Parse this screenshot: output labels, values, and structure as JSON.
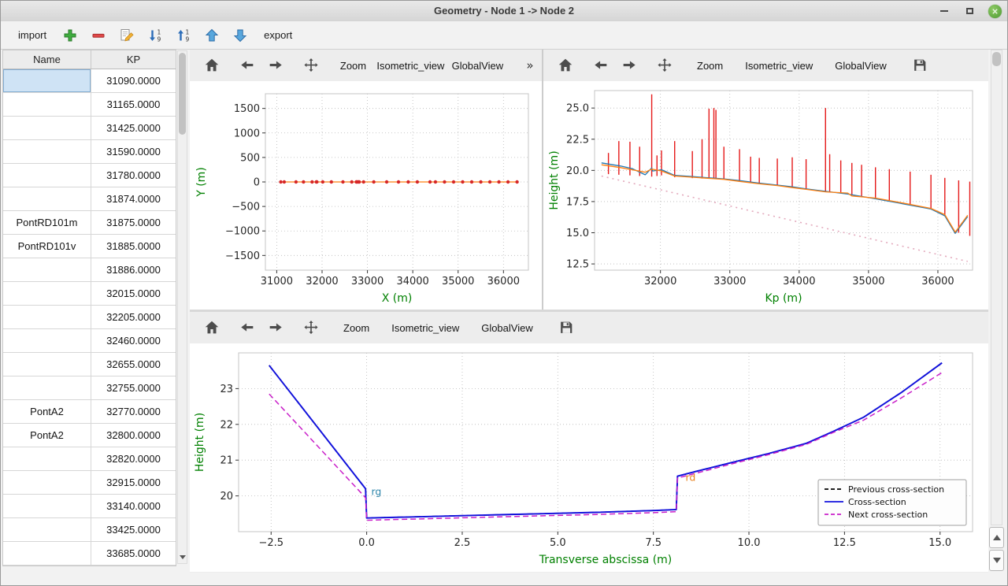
{
  "window": {
    "title": "Geometry - Node 1 -> Node 2"
  },
  "app_toolbar": {
    "import_label": "import",
    "export_label": "export",
    "icons": [
      "add-icon",
      "remove-icon",
      "edit-icon",
      "sort-descending-icon",
      "sort-ascending-icon",
      "move-up-icon",
      "move-down-icon"
    ]
  },
  "table": {
    "columns": [
      "Name",
      "KP"
    ],
    "rows": [
      {
        "name": "",
        "kp": "31090.0000",
        "selected": true
      },
      {
        "name": "",
        "kp": "31165.0000"
      },
      {
        "name": "",
        "kp": "31425.0000"
      },
      {
        "name": "",
        "kp": "31590.0000"
      },
      {
        "name": "",
        "kp": "31780.0000"
      },
      {
        "name": "",
        "kp": "31874.0000"
      },
      {
        "name": "PontRD101m",
        "kp": "31875.0000"
      },
      {
        "name": "PontRD101v",
        "kp": "31885.0000"
      },
      {
        "name": "",
        "kp": "31886.0000"
      },
      {
        "name": "",
        "kp": "32015.0000"
      },
      {
        "name": "",
        "kp": "32205.0000"
      },
      {
        "name": "",
        "kp": "32460.0000"
      },
      {
        "name": "",
        "kp": "32655.0000"
      },
      {
        "name": "",
        "kp": "32755.0000"
      },
      {
        "name": "PontA2",
        "kp": "32770.0000"
      },
      {
        "name": "PontA2",
        "kp": "32800.0000"
      },
      {
        "name": "",
        "kp": "32820.0000"
      },
      {
        "name": "",
        "kp": "32915.0000"
      },
      {
        "name": "",
        "kp": "33140.0000"
      },
      {
        "name": "",
        "kp": "33425.0000"
      },
      {
        "name": "",
        "kp": "33685.0000"
      }
    ]
  },
  "plot_toolbar_labels": {
    "zoom": "Zoom",
    "isometric": "Isometric_view",
    "globalview": "GlobalView",
    "overflow": "»"
  },
  "panels": [
    {
      "name": "plan-view",
      "buttons": [
        "home",
        "back",
        "forward",
        "move",
        "zoom",
        "isometric",
        "globalview",
        "overflow"
      ]
    },
    {
      "name": "long-profile",
      "buttons": [
        "home",
        "back",
        "forward",
        "move",
        "zoom",
        "isometric",
        "globalview",
        "save"
      ]
    },
    {
      "name": "cross-section",
      "buttons": [
        "home",
        "back",
        "forward",
        "move",
        "zoom",
        "isometric",
        "globalview",
        "save"
      ]
    }
  ],
  "chart_data": [
    {
      "type": "line",
      "title": "",
      "xlabel": "X (m)",
      "ylabel": "Y (m)",
      "axis_color": "#008000",
      "xlim": [
        30750,
        36550
      ],
      "ylim": [
        -1800,
        1800
      ],
      "xticks": [
        31000,
        32000,
        33000,
        34000,
        35000,
        36000
      ],
      "yticks": [
        -1500,
        -1000,
        -500,
        0,
        500,
        1000,
        1500
      ],
      "xtick_labels": [
        "31000",
        "32000",
        "33000",
        "34000",
        "35000",
        "36000"
      ],
      "ytick_labels": [
        "−1500",
        "−1000",
        "−500",
        "0",
        "500",
        "1000",
        "1500"
      ],
      "series": [
        {
          "name": "river-axis",
          "kind": "line",
          "color": "#ff7f0e",
          "width": 1.2,
          "marker": {
            "color": "#d62728",
            "r": 2.2
          },
          "points": [
            [
              31090,
              0
            ],
            [
              31165,
              0
            ],
            [
              31425,
              0
            ],
            [
              31590,
              0
            ],
            [
              31780,
              0
            ],
            [
              31874,
              0
            ],
            [
              31885,
              0
            ],
            [
              32015,
              0
            ],
            [
              32205,
              0
            ],
            [
              32460,
              0
            ],
            [
              32655,
              0
            ],
            [
              32755,
              0
            ],
            [
              32770,
              0
            ],
            [
              32800,
              0
            ],
            [
              32820,
              0
            ],
            [
              32915,
              0
            ],
            [
              33140,
              0
            ],
            [
              33425,
              0
            ],
            [
              33685,
              0
            ],
            [
              33900,
              0
            ],
            [
              34100,
              0
            ],
            [
              34380,
              0
            ],
            [
              34500,
              0
            ],
            [
              34700,
              0
            ],
            [
              34900,
              0
            ],
            [
              35100,
              0
            ],
            [
              35300,
              0
            ],
            [
              35500,
              0
            ],
            [
              35700,
              0
            ],
            [
              35900,
              0
            ],
            [
              36100,
              0
            ],
            [
              36300,
              0
            ]
          ]
        }
      ]
    },
    {
      "type": "line",
      "title": "",
      "xlabel": "Kp (m)",
      "ylabel": "Height (m)",
      "axis_color": "#008000",
      "xlim": [
        31050,
        36500
      ],
      "ylim": [
        12.0,
        26.4
      ],
      "xticks": [
        32000,
        33000,
        34000,
        35000,
        36000
      ],
      "yticks": [
        12.5,
        15.0,
        17.5,
        20.0,
        22.5,
        25.0
      ],
      "xtick_labels": [
        "32000",
        "33000",
        "34000",
        "35000",
        "36000"
      ],
      "ytick_labels": [
        "12.5",
        "15.0",
        "17.5",
        "20.0",
        "22.5",
        "25.0"
      ],
      "series": [
        {
          "name": "cross-section-extents",
          "kind": "stems",
          "color": "#e51919",
          "width": 1.4,
          "stems": [
            [
              31250,
              19.7,
              21.4
            ],
            [
              31400,
              19.65,
              22.35
            ],
            [
              31560,
              19.6,
              22.3
            ],
            [
              31700,
              19.55,
              21.9
            ],
            [
              31874,
              19.5,
              26.1
            ],
            [
              31950,
              19.55,
              21.2
            ],
            [
              32015,
              19.6,
              21.6
            ],
            [
              32205,
              19.45,
              22.35
            ],
            [
              32460,
              19.38,
              21.55
            ],
            [
              32600,
              19.35,
              22.5
            ],
            [
              32700,
              19.33,
              24.95
            ],
            [
              32770,
              19.3,
              25.0
            ],
            [
              32800,
              19.3,
              24.85
            ],
            [
              32915,
              19.28,
              21.9
            ],
            [
              33140,
              19.12,
              21.7
            ],
            [
              33300,
              19.0,
              21.1
            ],
            [
              33425,
              18.92,
              21.0
            ],
            [
              33685,
              18.78,
              20.95
            ],
            [
              33900,
              18.62,
              21.05
            ],
            [
              34100,
              18.48,
              20.9
            ],
            [
              34380,
              18.3,
              25.0
            ],
            [
              34440,
              18.28,
              21.3
            ],
            [
              34600,
              18.15,
              20.8
            ],
            [
              34760,
              18.0,
              20.6
            ],
            [
              34900,
              17.9,
              20.45
            ],
            [
              35100,
              17.72,
              20.25
            ],
            [
              35300,
              17.52,
              20.1
            ],
            [
              35600,
              17.2,
              19.9
            ],
            [
              35900,
              16.9,
              19.65
            ],
            [
              36100,
              16.35,
              19.4
            ],
            [
              36300,
              15.0,
              19.2
            ],
            [
              36460,
              14.75,
              19.1
            ]
          ]
        },
        {
          "name": "left-bank",
          "kind": "line",
          "color": "#1f77b4",
          "width": 1.3,
          "points": [
            [
              31150,
              20.6
            ],
            [
              31425,
              20.35
            ],
            [
              31590,
              20.15
            ],
            [
              31780,
              19.65
            ],
            [
              31874,
              20.2
            ],
            [
              31886,
              19.95
            ],
            [
              32015,
              20.05
            ],
            [
              32205,
              19.6
            ],
            [
              32460,
              19.5
            ],
            [
              32655,
              19.42
            ],
            [
              32770,
              19.38
            ],
            [
              32915,
              19.32
            ],
            [
              33140,
              19.18
            ],
            [
              33425,
              18.98
            ],
            [
              33685,
              18.82
            ],
            [
              33900,
              18.68
            ],
            [
              34100,
              18.52
            ],
            [
              34380,
              18.32
            ],
            [
              34700,
              18.1
            ],
            [
              35100,
              17.72
            ],
            [
              35500,
              17.32
            ],
            [
              35900,
              16.9
            ],
            [
              36100,
              16.35
            ],
            [
              36250,
              14.95
            ],
            [
              36430,
              16.3
            ]
          ]
        },
        {
          "name": "right-bank",
          "kind": "line",
          "color": "#ff7f0e",
          "width": 1.3,
          "points": [
            [
              31150,
              20.45
            ],
            [
              31425,
              20.22
            ],
            [
              31590,
              20.05
            ],
            [
              31780,
              19.85
            ],
            [
              31874,
              20.1
            ],
            [
              32015,
              19.95
            ],
            [
              32205,
              19.55
            ],
            [
              32460,
              19.45
            ],
            [
              32655,
              19.38
            ],
            [
              32770,
              19.33
            ],
            [
              32915,
              19.28
            ],
            [
              33140,
              19.12
            ],
            [
              33425,
              18.92
            ],
            [
              33685,
              18.78
            ],
            [
              33900,
              18.62
            ],
            [
              34100,
              18.48
            ],
            [
              34380,
              18.28
            ],
            [
              34700,
              18.18
            ],
            [
              34760,
              17.95
            ],
            [
              35100,
              17.78
            ],
            [
              35500,
              17.38
            ],
            [
              35900,
              16.95
            ],
            [
              36100,
              16.45
            ],
            [
              36250,
              15.05
            ],
            [
              36430,
              16.4
            ]
          ]
        },
        {
          "name": "thalweg",
          "kind": "line",
          "color": "#e3a9bc",
          "width": 1.6,
          "dash": "2,5",
          "points": [
            [
              31150,
              19.55
            ],
            [
              36430,
              12.7
            ]
          ]
        }
      ]
    },
    {
      "type": "line",
      "title": "",
      "xlabel": "Transverse abscissa (m)",
      "ylabel": "Height (m)",
      "axis_color": "#008000",
      "xlim": [
        -3.35,
        15.85
      ],
      "ylim": [
        19.0,
        24.0
      ],
      "xticks": [
        -2.5,
        0.0,
        2.5,
        5.0,
        7.5,
        10.0,
        12.5,
        15.0
      ],
      "yticks": [
        20,
        21,
        22,
        23
      ],
      "xtick_labels": [
        "−2.5",
        "0.0",
        "2.5",
        "5.0",
        "7.5",
        "10.0",
        "12.5",
        "15.0"
      ],
      "ytick_labels": [
        "20",
        "21",
        "22",
        "23"
      ],
      "series": [
        {
          "name": "previous-cross-section",
          "kind": "line",
          "color": "#000000",
          "width": 1.6,
          "dash": "7,4",
          "points": [
            [
              -2.55,
              23.65
            ],
            [
              -0.03,
              20.2
            ],
            [
              0.0,
              19.38
            ],
            [
              1.5,
              19.42
            ],
            [
              3.0,
              19.46
            ],
            [
              4.5,
              19.5
            ],
            [
              6.0,
              19.54
            ],
            [
              7.5,
              19.59
            ],
            [
              8.1,
              19.62
            ],
            [
              8.13,
              20.55
            ],
            [
              8.6,
              20.68
            ],
            [
              9.5,
              20.92
            ],
            [
              10.5,
              21.18
            ],
            [
              11.5,
              21.47
            ],
            [
              12.2,
              21.8
            ],
            [
              13.0,
              22.2
            ],
            [
              14.0,
              22.9
            ],
            [
              15.05,
              23.72
            ]
          ]
        },
        {
          "name": "cross-section",
          "kind": "line",
          "color": "#1010dd",
          "width": 1.9,
          "points": [
            [
              -2.55,
              23.65
            ],
            [
              -0.03,
              20.2
            ],
            [
              0.0,
              19.38
            ],
            [
              1.5,
              19.42
            ],
            [
              3.0,
              19.46
            ],
            [
              4.5,
              19.5
            ],
            [
              6.0,
              19.54
            ],
            [
              7.5,
              19.59
            ],
            [
              8.1,
              19.62
            ],
            [
              8.13,
              20.55
            ],
            [
              8.6,
              20.68
            ],
            [
              9.5,
              20.92
            ],
            [
              10.5,
              21.18
            ],
            [
              11.5,
              21.47
            ],
            [
              12.2,
              21.8
            ],
            [
              13.0,
              22.2
            ],
            [
              14.0,
              22.9
            ],
            [
              15.05,
              23.72
            ]
          ]
        },
        {
          "name": "next-cross-section",
          "kind": "line",
          "color": "#c920c9",
          "width": 1.5,
          "dash": "7,4",
          "points": [
            [
              -2.55,
              22.85
            ],
            [
              -0.03,
              19.95
            ],
            [
              0.0,
              19.32
            ],
            [
              1.5,
              19.36
            ],
            [
              3.0,
              19.4
            ],
            [
              4.5,
              19.44
            ],
            [
              6.0,
              19.48
            ],
            [
              7.5,
              19.53
            ],
            [
              8.1,
              19.56
            ],
            [
              8.13,
              20.5
            ],
            [
              8.6,
              20.63
            ],
            [
              9.5,
              20.88
            ],
            [
              10.5,
              21.15
            ],
            [
              11.5,
              21.44
            ],
            [
              12.2,
              21.77
            ],
            [
              13.0,
              22.12
            ],
            [
              14.0,
              22.75
            ],
            [
              15.05,
              23.45
            ]
          ]
        }
      ],
      "annotations": [
        {
          "x": 0.08,
          "y": 20.02,
          "text": "rg",
          "color": "#2e86ab"
        },
        {
          "x": 8.3,
          "y": 20.42,
          "text": "rd",
          "color": "#e8821e"
        }
      ],
      "legend": {
        "items": [
          {
            "label": "Previous cross-section",
            "color": "#000000",
            "dash": "5,3"
          },
          {
            "label": "Cross-section",
            "color": "#1010dd",
            "dash": ""
          },
          {
            "label": "Next cross-section",
            "color": "#c920c9",
            "dash": "5,3"
          }
        ]
      }
    }
  ]
}
